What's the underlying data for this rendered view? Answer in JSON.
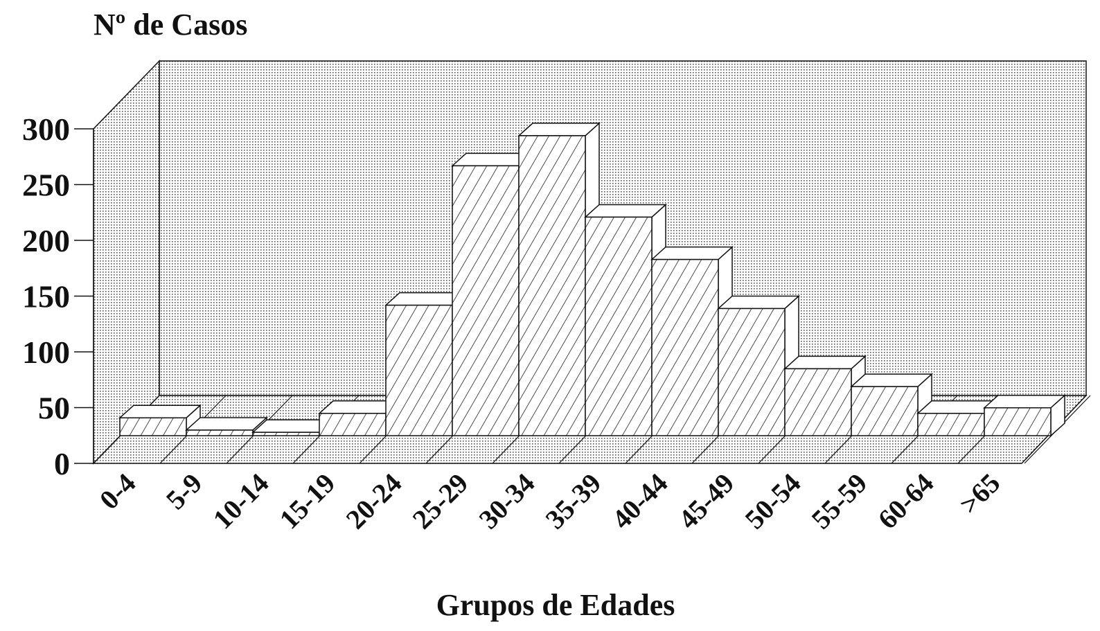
{
  "chart_data": {
    "type": "bar3d",
    "title": "Nº de Casos",
    "x_label": "Grupos de Edades",
    "categories": [
      "0-4",
      "5-9",
      "10-14",
      "15-19",
      "20-24",
      "25-29",
      "30-34",
      "35-39",
      "40-44",
      "45-49",
      "50-54",
      "55-59",
      "60-64",
      ">65"
    ],
    "values": [
      16,
      5,
      3,
      20,
      117,
      242,
      269,
      196,
      158,
      114,
      60,
      44,
      20,
      25
    ],
    "color": "#ffffff",
    "pattern": "diagonal-hatch",
    "ylim": [
      0,
      300
    ],
    "yticks": [
      0,
      50,
      100,
      150,
      200,
      250,
      300
    ]
  }
}
